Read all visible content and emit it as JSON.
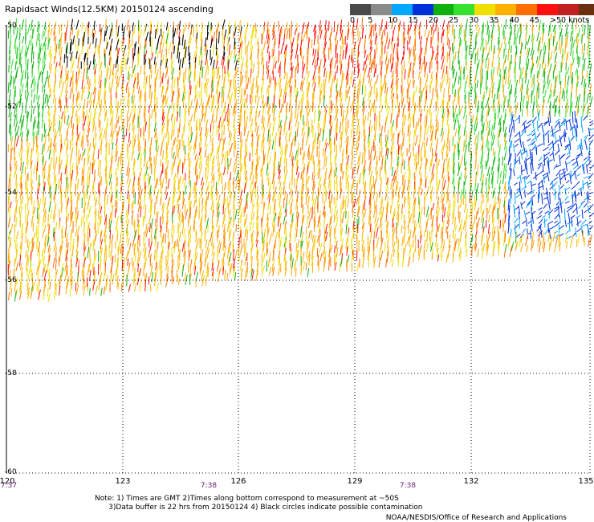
{
  "title": "Rapidsact Winds(12.5KM) 20150124 ascending",
  "legend": {
    "colors": [
      "#4a4a4a",
      "#8a8a8a",
      "#00a8ff",
      "#0030d8",
      "#10b010",
      "#38e030",
      "#f0e000",
      "#ffb000",
      "#ff7000",
      "#ff1010",
      "#c02020",
      "#6a3010",
      "#a06040",
      "#ff00ff",
      "#9000a0",
      "#300060"
    ],
    "labels": [
      "0",
      "5",
      "10",
      "15",
      "20",
      "25",
      "30",
      "35",
      "40",
      "45",
      ">50 knots"
    ]
  },
  "map": {
    "lat_labels": [
      "-50",
      "-52",
      "-54",
      "-56",
      "-58",
      "-60"
    ],
    "lon_labels": [
      "120",
      "123",
      "126",
      "129",
      "132",
      "135"
    ],
    "time_labels": [
      "7:37",
      "7:38",
      "7:38"
    ],
    "lat_range": [
      -60,
      -50
    ],
    "lon_range": [
      120,
      135
    ],
    "grid": "dotted"
  },
  "notes": [
    "Note: 1) Times are GMT 2)Times along bottom correspond to measurement at ~50S",
    "      3)Data buffer is 22 hrs from 20150124 4) Black circles indicate possible contamination"
  ],
  "credit": "NOAA/NESDIS/Office of Research and Applications"
}
